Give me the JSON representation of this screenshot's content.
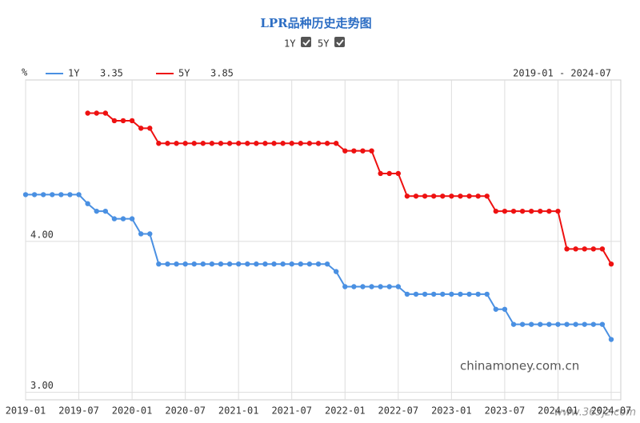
{
  "chart_data": {
    "type": "line",
    "title": "LPR品种历史走势图",
    "y_label": "%",
    "date_range": "2019-01 - 2024-07",
    "watermarks": [
      "chinamoney.com.cn",
      "www.365jz.com"
    ],
    "categories": [
      "2019-01",
      null,
      null,
      null,
      null,
      null,
      "2019-07",
      null,
      null,
      null,
      null,
      null,
      "2020-01",
      null,
      null,
      null,
      null,
      null,
      "2020-07",
      null,
      null,
      null,
      null,
      null,
      "2021-01",
      null,
      null,
      null,
      null,
      null,
      "2021-07",
      null,
      null,
      null,
      null,
      null,
      "2022-01",
      null,
      null,
      null,
      null,
      null,
      "2022-07",
      null,
      null,
      null,
      null,
      null,
      "2023-01",
      null,
      null,
      null,
      null,
      null,
      "2023-07",
      null,
      null,
      null,
      null,
      null,
      "2024-01",
      null,
      null,
      null,
      null,
      null,
      "2024-07"
    ],
    "series": [
      {
        "name": "1Y",
        "color": "#4a90e2",
        "values": [
          4.31,
          4.31,
          4.31,
          4.31,
          4.31,
          4.31,
          4.31,
          4.25,
          4.2,
          4.2,
          4.15,
          4.15,
          4.15,
          4.05,
          4.05,
          3.85,
          3.85,
          3.85,
          3.85,
          3.85,
          3.85,
          3.85,
          3.85,
          3.85,
          3.85,
          3.85,
          3.85,
          3.85,
          3.85,
          3.85,
          3.85,
          3.85,
          3.85,
          3.85,
          3.85,
          3.8,
          3.7,
          3.7,
          3.7,
          3.7,
          3.7,
          3.7,
          3.7,
          3.65,
          3.65,
          3.65,
          3.65,
          3.65,
          3.65,
          3.65,
          3.65,
          3.65,
          3.65,
          3.55,
          3.55,
          3.45,
          3.45,
          3.45,
          3.45,
          3.45,
          3.45,
          3.45,
          3.45,
          3.45,
          3.45,
          3.45,
          3.35
        ]
      },
      {
        "name": "5Y",
        "color": "#ee1111",
        "values": [
          null,
          null,
          null,
          null,
          null,
          null,
          null,
          4.85,
          4.85,
          4.85,
          4.8,
          4.8,
          4.8,
          4.75,
          4.75,
          4.65,
          4.65,
          4.65,
          4.65,
          4.65,
          4.65,
          4.65,
          4.65,
          4.65,
          4.65,
          4.65,
          4.65,
          4.65,
          4.65,
          4.65,
          4.65,
          4.65,
          4.65,
          4.65,
          4.65,
          4.65,
          4.6,
          4.6,
          4.6,
          4.6,
          4.45,
          4.45,
          4.45,
          4.3,
          4.3,
          4.3,
          4.3,
          4.3,
          4.3,
          4.3,
          4.3,
          4.3,
          4.3,
          4.2,
          4.2,
          4.2,
          4.2,
          4.2,
          4.2,
          4.2,
          4.2,
          3.95,
          3.95,
          3.95,
          3.95,
          3.95,
          3.85
        ]
      }
    ],
    "ylim": [
      2.95,
      5.07
    ],
    "yticks": [
      {
        "value": 3,
        "label": "3.00"
      },
      {
        "value": 4,
        "label": "4.00"
      }
    ],
    "grid": true
  }
}
